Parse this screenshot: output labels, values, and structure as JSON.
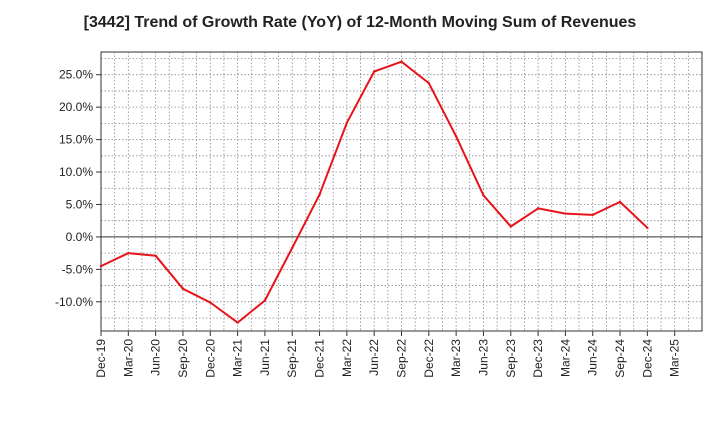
{
  "chart_data": {
    "type": "line",
    "title": "[3442]  Trend of Growth Rate (YoY) of 12-Month Moving Sum of Revenues",
    "xlabel": "",
    "ylabel": "",
    "x": [
      "Dec-19",
      "Mar-20",
      "Jun-20",
      "Sep-20",
      "Dec-20",
      "Mar-21",
      "Jun-21",
      "Sep-21",
      "Dec-21",
      "Mar-22",
      "Jun-22",
      "Sep-22",
      "Dec-22",
      "Mar-23",
      "Jun-23",
      "Sep-23",
      "Dec-23",
      "Mar-24",
      "Jun-24",
      "Sep-24",
      "Dec-24",
      "Mar-25"
    ],
    "yticks": [
      -10,
      -5,
      0,
      5,
      10,
      15,
      20,
      25
    ],
    "ytick_labels": [
      "-10.0%",
      "-5.0%",
      "0.0%",
      "5.0%",
      "10.0%",
      "15.0%",
      "20.0%",
      "25.0%"
    ],
    "ylim": [
      -14.5,
      28.5
    ],
    "grid": true,
    "series": [
      {
        "name": "",
        "color": "#e8141c",
        "values": [
          -4.5,
          -2.5,
          -2.9,
          -8.0,
          -10.1,
          -13.2,
          -9.8,
          -1.7,
          6.5,
          17.6,
          25.5,
          27.0,
          23.7,
          15.5,
          6.4,
          1.6,
          4.4,
          3.6,
          3.4,
          5.4,
          1.4,
          null
        ]
      }
    ]
  }
}
